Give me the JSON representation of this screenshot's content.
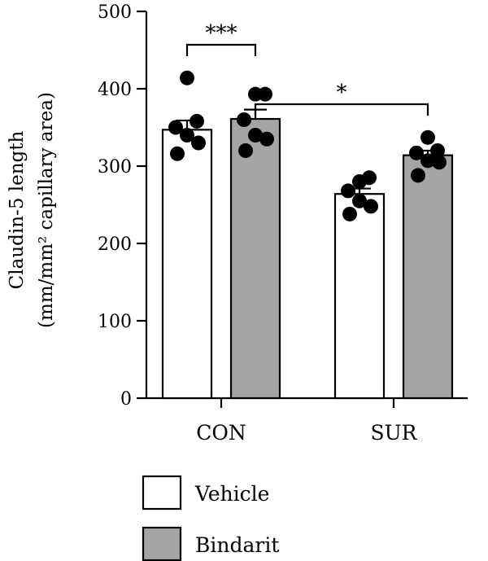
{
  "chart_data": {
    "type": "bar",
    "title": "",
    "ylabel_lines": [
      "Claudin-5 length",
      "(mm/mm² capillary area)"
    ],
    "xlabel": "",
    "categories": [
      "CON",
      "SUR"
    ],
    "ylim": [
      0,
      500
    ],
    "yticks": [
      0,
      100,
      200,
      300,
      400,
      500
    ],
    "series": [
      {
        "name": "Vehicle",
        "color": "#ffffff",
        "values": [
          347,
          264
        ],
        "sem": [
          12,
          7
        ],
        "points": [
          [
            414,
            358,
            350,
            340,
            330,
            316
          ],
          [
            280,
            285,
            268,
            255,
            248,
            238
          ]
        ]
      },
      {
        "name": "Bindarit",
        "color": "#a5a5a7",
        "values": [
          361,
          314
        ],
        "sem": [
          12,
          6
        ],
        "points": [
          [
            393,
            393,
            360,
            340,
            335,
            320
          ],
          [
            337,
            320,
            317,
            307,
            305,
            288
          ]
        ]
      }
    ],
    "significance": [
      {
        "label": "***",
        "from": [
          0,
          0
        ],
        "to": [
          1,
          0
        ]
      },
      {
        "label": "*",
        "from": [
          1,
          0
        ],
        "to": [
          1,
          1
        ]
      }
    ],
    "legend_position": "bottom"
  }
}
